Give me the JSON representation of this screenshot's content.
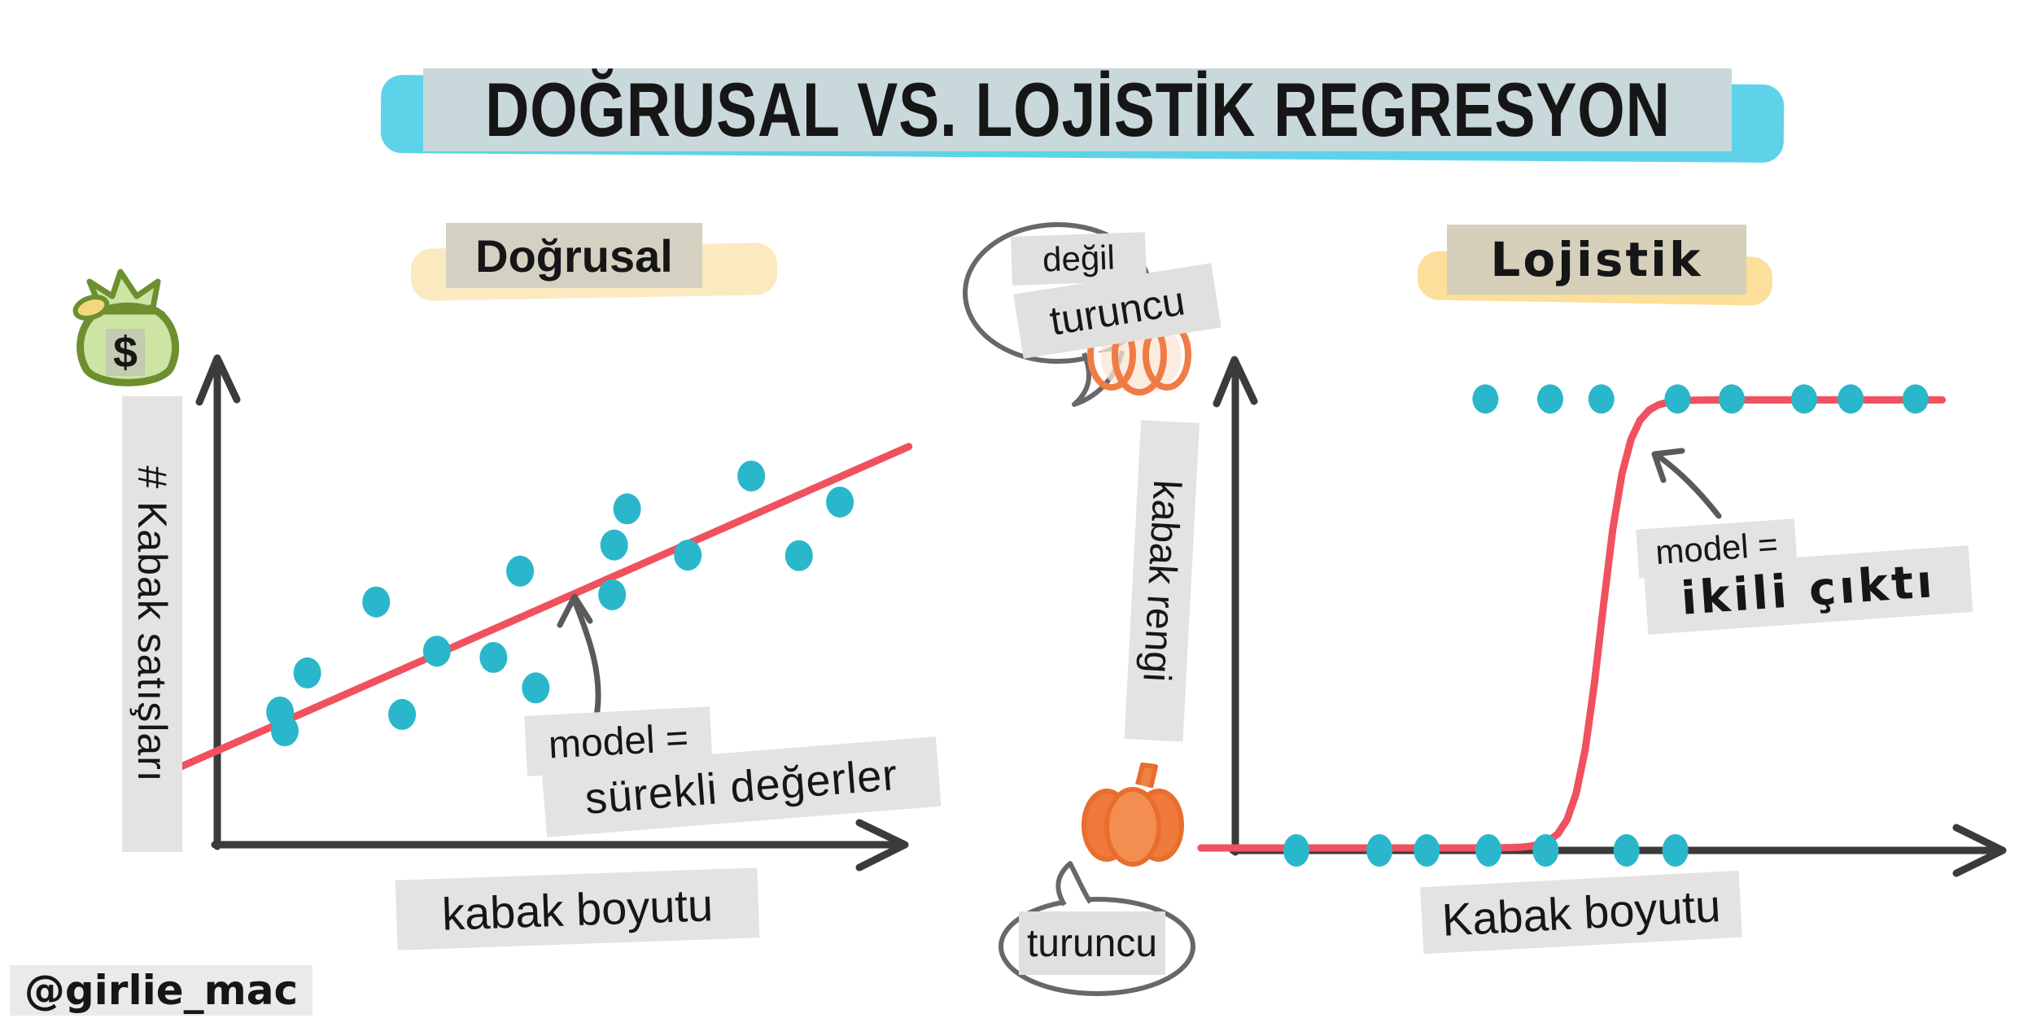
{
  "title": {
    "text": "DOĞRUSAL VS. LOJİSTİK REGRESYON"
  },
  "page": {
    "credit": "@girlie_mac",
    "background": "#ffffff"
  },
  "colors": {
    "dot_teal": "#2ab7cb",
    "line_red": "#f0515f",
    "axis_black": "#3b3b3b",
    "label_gray_bg": "#e4e3e1",
    "title_band": "#c9d8da",
    "title_brush_cyan": "#5ed2e9",
    "linear_band": "#d4d1c2",
    "linear_brush_cream": "#fdeecb",
    "logistic_band": "#d6cfba",
    "logistic_brush_yellow": "#fbdf9a",
    "pumpkin_orange": "#f08142",
    "pumpkin_outline": "#ef7c45",
    "money_bag_green": "#6d8f2f",
    "bubble_outline": "#686868",
    "arrow_gray": "#5a5a5a"
  },
  "chart_data": [
    {
      "type": "scatter",
      "title": "Doğrusal",
      "xlabel": "kabak boyutu",
      "ylabel": "# Kabak satışları",
      "y_axis_icon": "money-bag-icon",
      "currency_symbol": "$",
      "annotation": {
        "line1": "model =",
        "line2": "sürekli değerler"
      },
      "point_color": "#2ab7cb",
      "line_color": "#f0515f",
      "xlim": [
        0,
        100
      ],
      "ylim": [
        0,
        100
      ],
      "grid": false,
      "points": [
        [
          9.2,
          27.5
        ],
        [
          9.9,
          23.6
        ],
        [
          13.2,
          35.6
        ],
        [
          23.3,
          50.3
        ],
        [
          27.1,
          27.0
        ],
        [
          32.2,
          40.1
        ],
        [
          40.5,
          38.8
        ],
        [
          44.4,
          56.7
        ],
        [
          46.7,
          32.5
        ],
        [
          57.9,
          51.8
        ],
        [
          58.2,
          62.1
        ],
        [
          60.1,
          69.6
        ],
        [
          69.0,
          60.0
        ],
        [
          78.3,
          76.4
        ],
        [
          85.3,
          59.9
        ],
        [
          91.3,
          71.0
        ]
      ],
      "regression_line": {
        "from": [
          -5.6,
          16.0
        ],
        "to": [
          101.4,
          82.5
        ]
      }
    },
    {
      "type": "scatter",
      "title": "Lojistik",
      "xlabel": "Kabak boyutu",
      "ylabel": "kabak rengi",
      "annotation": {
        "line1": "model =",
        "line2": "ikili çıktı"
      },
      "bubbles": {
        "top_line1": "değil",
        "top_line2": "turuncu",
        "bottom": "turuncu"
      },
      "class_icons": {
        "top": "white-pumpkin-icon",
        "bottom": "orange-pumpkin-icon"
      },
      "point_color": "#2ab7cb",
      "line_color": "#f0515f",
      "xlim": [
        0,
        100
      ],
      "ylim": [
        0,
        100
      ],
      "grid": false,
      "y_bottom": 0,
      "y_top": 91.7,
      "points_bottom": [
        8.0,
        18.9,
        25.1,
        33.2,
        40.7,
        51.3,
        57.7
      ],
      "points_top": [
        32.8,
        41.3,
        48.0,
        58.0,
        65.1,
        74.6,
        80.7,
        89.2
      ],
      "sigmoid": {
        "x_from": -4.5,
        "x_to": 93.8,
        "x_mid": 48,
        "steepness": 0.6,
        "y_low": 0.5,
        "y_high": 91.5
      }
    }
  ]
}
